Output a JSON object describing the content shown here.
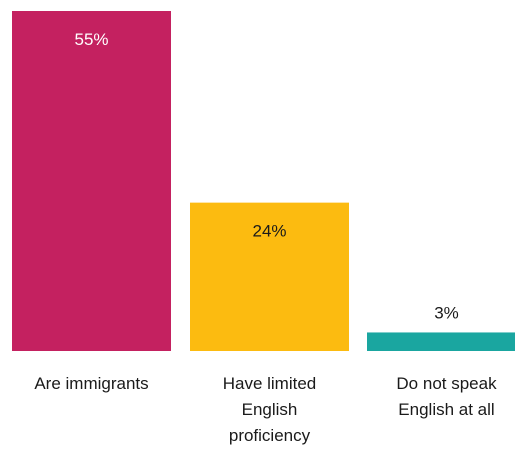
{
  "chart_data": {
    "type": "bar",
    "categories": [
      [
        "Are immigrants"
      ],
      [
        "Have limited",
        "English",
        "proficiency"
      ],
      [
        "Do not speak",
        "English at all"
      ]
    ],
    "values": [
      55,
      24,
      3
    ],
    "value_labels": [
      "55%",
      "24%",
      "3%"
    ],
    "colors": [
      "#c42160",
      "#fcbb10",
      "#1aa6a0"
    ],
    "value_label_colors": [
      "#ffffff",
      "#1a1a1a",
      "#1a1a1a"
    ],
    "ylim": [
      0,
      55
    ],
    "grid": false,
    "title": "",
    "xlabel": "",
    "ylabel": ""
  }
}
